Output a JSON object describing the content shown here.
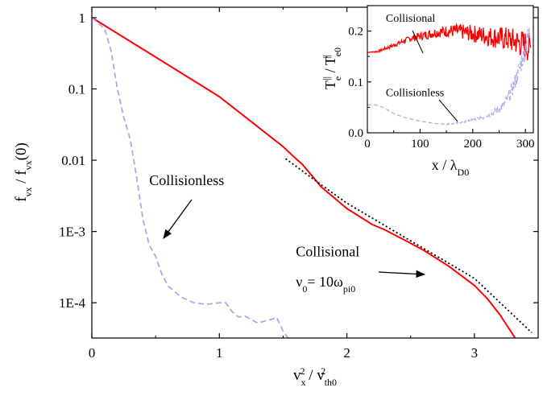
{
  "chart_data": [
    {
      "type": "line",
      "panel": "main",
      "xlabel": {
        "base": "v",
        "sub1": "x",
        "sup1": "2",
        "mid": " / v",
        "sub2": "th0",
        "sup2": "2"
      },
      "ylabel": {
        "part1": "f",
        "sub1": "vx",
        "part2": " / f",
        "sub2": "vx",
        "part3": "(0)"
      },
      "xlim": [
        0,
        3.5
      ],
      "ylim": [
        3.2e-05,
        1.4
      ],
      "yscale": "log",
      "xticks": [
        {
          "value": 0,
          "label": "0"
        },
        {
          "value": 1,
          "label": "1"
        },
        {
          "value": 2,
          "label": "2"
        },
        {
          "value": 3,
          "label": "3"
        }
      ],
      "yticks": [
        {
          "value": 1,
          "label": "1"
        },
        {
          "value": 0.1,
          "label": "0.1"
        },
        {
          "value": 0.01,
          "label": "0.01"
        },
        {
          "value": 0.001,
          "label": "1E-3"
        },
        {
          "value": 0.0001,
          "label": "1E-4"
        }
      ],
      "annotations": [
        {
          "text": "Collisionless",
          "x": 0.45,
          "y": 0.0045
        },
        {
          "text": "Collisional",
          "x": 1.6,
          "y": 0.00045
        },
        {
          "text_parts": [
            "ν",
            "0",
            "= 10ω",
            "pi0"
          ],
          "x": 1.6,
          "y": 0.00017
        }
      ],
      "series": [
        {
          "color": "#ff0000",
          "dash": "solid",
          "x": [
            0,
            0.5,
            1.0,
            1.5,
            1.6,
            1.65,
            1.8,
            2.0,
            2.2,
            2.3,
            2.6,
            2.8,
            3.0,
            3.1,
            3.2,
            3.33
          ],
          "y": [
            1,
            0.28,
            0.078,
            0.0155,
            0.0105,
            0.0088,
            0.0042,
            0.0021,
            0.00125,
            0.00105,
            0.00055,
            0.000325,
            0.000175,
            0.000115,
            6.8e-05,
            3e-05
          ]
        },
        {
          "color": "#000000",
          "dash": "dotted",
          "x": [
            1.52,
            1.8,
            2.0,
            2.5,
            3.0,
            3.45
          ],
          "y": [
            0.0105,
            0.0045,
            0.0025,
            0.00074,
            0.00022,
            3.8e-05
          ]
        },
        {
          "color": "#a9a9ee",
          "dash": "dashed",
          "x": [
            0,
            0.1,
            0.15,
            0.2,
            0.25,
            0.3,
            0.35,
            0.4,
            0.45,
            0.5,
            0.55,
            0.6,
            0.7,
            0.8,
            0.9,
            1.0,
            1.05,
            1.1,
            1.15,
            1.2,
            1.3,
            1.4,
            1.45,
            1.5,
            1.55
          ],
          "y": [
            1,
            0.7,
            0.35,
            0.1,
            0.04,
            0.02,
            0.006,
            0.0015,
            0.00065,
            0.00045,
            0.00025,
            0.00017,
            0.00012,
            0.0001,
            9.5e-05,
            0.0001,
            0.0001,
            7.5e-05,
            6.3e-05,
            6.5e-05,
            5.2e-05,
            5.8e-05,
            6.2e-05,
            4e-05,
            3e-05
          ]
        }
      ]
    },
    {
      "type": "line",
      "panel": "inset",
      "xlabel": {
        "part1": "x / λ",
        "sub1": "D0"
      },
      "ylabel": {
        "part1": "T",
        "sub1": "e",
        "sup1": "||",
        "part2": " / T",
        "sub2": "e0",
        "sup2": "||"
      },
      "xlim": [
        0,
        315
      ],
      "ylim": [
        0,
        0.25
      ],
      "xticks": [
        {
          "value": 0,
          "label": "0"
        },
        {
          "value": 100,
          "label": "100"
        },
        {
          "value": 200,
          "label": "200"
        },
        {
          "value": 300,
          "label": "300"
        }
      ],
      "yticks": [
        {
          "value": 0.0,
          "label": "0.0"
        },
        {
          "value": 0.1,
          "label": "0.1"
        },
        {
          "value": 0.2,
          "label": "0.2"
        }
      ],
      "annotations": [
        {
          "text": "Collisional",
          "x": 35,
          "y": 0.218
        },
        {
          "text": "Collisionless",
          "x": 35,
          "y": 0.072
        }
      ],
      "series": [
        {
          "name": "Collisional",
          "color": "#ff0000",
          "dash": "solid",
          "x": [
            0,
            20,
            50,
            80,
            100,
            130,
            150,
            170,
            200,
            230,
            260,
            280,
            300,
            310
          ],
          "y": [
            0.158,
            0.16,
            0.172,
            0.185,
            0.19,
            0.197,
            0.2,
            0.2,
            0.195,
            0.19,
            0.185,
            0.18,
            0.172,
            0.165
          ],
          "noise": [
            0,
            0.002,
            0.004,
            0.006,
            0.008,
            0.01,
            0.012,
            0.014,
            0.017,
            0.02,
            0.024,
            0.026,
            0.03,
            0.03
          ]
        },
        {
          "name": "Collisionless",
          "color": "#a9a9ee",
          "dash": "dashed",
          "x": [
            0,
            15,
            30,
            50,
            70,
            100,
            130,
            150,
            180,
            200,
            220,
            240,
            260,
            275,
            290,
            300,
            310
          ],
          "y": [
            0.055,
            0.055,
            0.05,
            0.038,
            0.03,
            0.023,
            0.018,
            0.017,
            0.02,
            0.025,
            0.03,
            0.04,
            0.055,
            0.085,
            0.13,
            0.17,
            0.2
          ],
          "noise": [
            0,
            0,
            0,
            0,
            0,
            0,
            0,
            0.001,
            0.002,
            0.003,
            0.004,
            0.006,
            0.01,
            0.015,
            0.02,
            0.025,
            0.03
          ]
        }
      ]
    }
  ]
}
